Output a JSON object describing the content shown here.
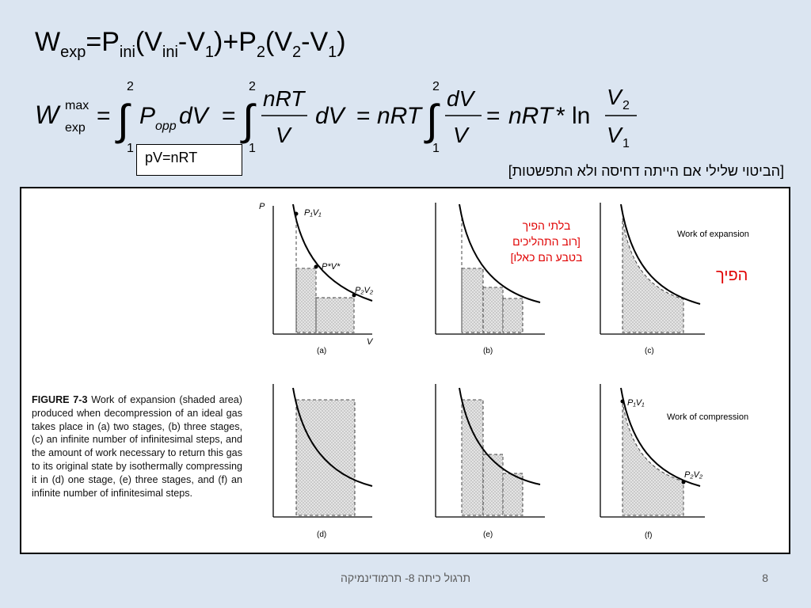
{
  "equation_top": {
    "w": "W",
    "w_sub": "exp",
    "eq": "=P",
    "p_sub": "ini",
    "open": "(V",
    "v_sub": "ini",
    "minus1": "-V",
    "one1": "1",
    "close1": ")+P",
    "two1": "2",
    "open2": "(V",
    "two2": "2",
    "minus2": "-V",
    "one2": "1",
    "close2": ")"
  },
  "equation_integral": {
    "w": "W",
    "sup": "max",
    "sub": "exp",
    "upper": "2",
    "lower": "1",
    "p": "P",
    "p_sub": "opp",
    "dv": "dV",
    "nrt": "nRT",
    "v": "V",
    "dv2": "dV",
    "nrt2": "nRT",
    "num_dv": "dV",
    "den_v": "V",
    "nrt3": "nRT",
    "times": "*",
    "ln": "ln",
    "v2": "V",
    "v2_sub": "2",
    "v1": "V",
    "v1_sub": "1",
    "eq": "="
  },
  "pv_box": "pV=nRT",
  "note": "[הביטוי שלילי אם הייתה דחיסה ולא התפשטות]",
  "figure": {
    "panel_a": {
      "label": "(a)",
      "axis_p": "P",
      "axis_v": "V",
      "pt1": "P₁V₁",
      "pt_mid": "P*V*",
      "pt2": "P₂V₂"
    },
    "panel_b": {
      "label": "(b)",
      "note_line1": "בלתי הפיך",
      "note_line2": "[רוב התהליכים",
      "note_line3": "בטבע הם כאלו]"
    },
    "panel_c": {
      "label": "(c)",
      "title": "Work of expansion",
      "note": "הפיך"
    },
    "panel_d": {
      "label": "(d)"
    },
    "panel_e": {
      "label": "(e)"
    },
    "panel_f": {
      "label": "(f)",
      "title": "Work of compression",
      "pt1": "P₁V₁",
      "pt2": "P₂V₂"
    }
  },
  "caption": {
    "bold": "FIGURE 7-3",
    "text": " Work of expansion (shaded area) produced when decompression of an ideal gas takes place in (a) two stages, (b) three stages, (c) an infinite number of infinitesimal steps, and the amount of work necessary to return this gas to its original state by isothermally compressing it in (d) one stage, (e) three stages, and (f) an infinite number of infinitesimal steps."
  },
  "footer": {
    "title": "תרגול כיתה 8- תרמודינמיקה",
    "page": "8"
  },
  "colors": {
    "background": "#dbe5f1",
    "accent_red": "#e00000",
    "shade": "#dcdcdc"
  }
}
